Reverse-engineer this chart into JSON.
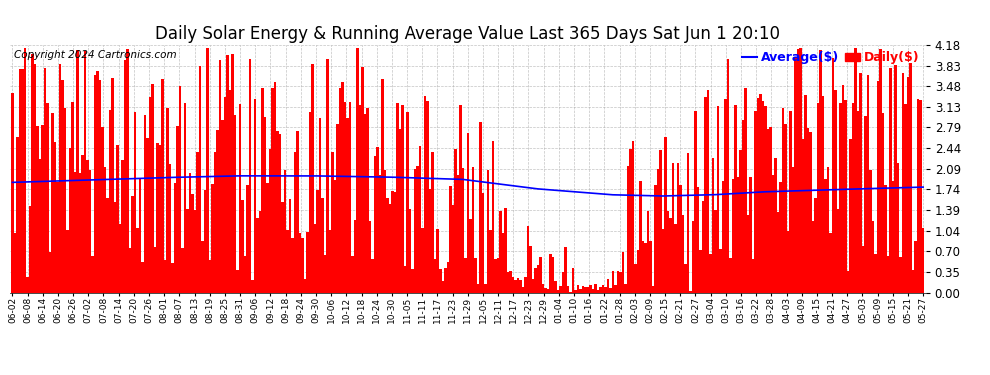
{
  "title": "Daily Solar Energy & Running Average Value Last 365 Days Sat Jun 1 20:10",
  "copyright": "Copyright 2024 Cartronics.com",
  "legend_avg": "Average($)",
  "legend_daily": "Daily($)",
  "ylim": [
    0.0,
    4.18
  ],
  "yticks": [
    0.0,
    0.35,
    0.7,
    1.04,
    1.39,
    1.74,
    2.09,
    2.44,
    2.79,
    3.13,
    3.48,
    3.83,
    4.18
  ],
  "bar_color": "#ff0000",
  "avg_color": "#0000ff",
  "bg_color": "#ffffff",
  "grid_color": "#aaaaaa",
  "title_fontsize": 12,
  "copyright_fontsize": 7.5,
  "num_bars": 365,
  "x_labels": [
    "06-02",
    "06-08",
    "06-14",
    "06-20",
    "06-26",
    "07-02",
    "07-08",
    "07-14",
    "07-20",
    "07-26",
    "08-01",
    "08-07",
    "08-13",
    "08-19",
    "08-25",
    "08-31",
    "09-06",
    "09-12",
    "09-18",
    "09-24",
    "09-30",
    "10-06",
    "10-12",
    "10-18",
    "10-24",
    "10-30",
    "11-05",
    "11-11",
    "11-17",
    "11-23",
    "11-29",
    "12-05",
    "12-11",
    "12-17",
    "12-23",
    "12-29",
    "01-04",
    "01-10",
    "01-16",
    "01-22",
    "01-28",
    "02-03",
    "02-09",
    "02-15",
    "02-21",
    "02-27",
    "03-04",
    "03-10",
    "03-16",
    "03-22",
    "03-28",
    "04-03",
    "04-09",
    "04-15",
    "04-21",
    "04-27",
    "05-03",
    "05-09",
    "05-15",
    "05-21",
    "05-27"
  ],
  "avg_points": [
    [
      0,
      1.86
    ],
    [
      30,
      1.9
    ],
    [
      60,
      1.94
    ],
    [
      90,
      1.97
    ],
    [
      120,
      1.97
    ],
    [
      150,
      1.95
    ],
    [
      180,
      1.91
    ],
    [
      210,
      1.75
    ],
    [
      240,
      1.65
    ],
    [
      260,
      1.63
    ],
    [
      280,
      1.65
    ],
    [
      300,
      1.7
    ],
    [
      330,
      1.74
    ],
    [
      364,
      1.78
    ]
  ]
}
